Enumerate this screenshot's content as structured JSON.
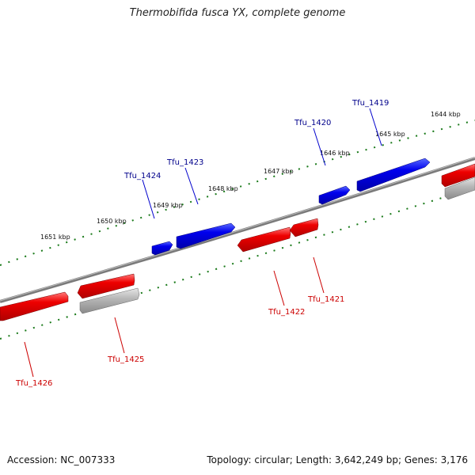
{
  "title": "Thermobifida fusca YX, complete genome",
  "accession": "Accession: NC_007333",
  "summary": "Topology: circular; Length: 3,642,249 bp; Genes: 3,176",
  "colors": {
    "forward_strand": "#0000dd",
    "reverse_strand": "#ee0000",
    "other_feature": "#b3b3b3",
    "backbone": "#777777",
    "ruler_dots": "#1a7a1a",
    "forward_label": "#00008b",
    "reverse_label": "#cc0000"
  },
  "scale_labels": [
    "1651 kbp",
    "1650 kbp",
    "1649 kbp",
    "1648 kbp",
    "1647 kbp",
    "1646 kbp",
    "1645 kbp",
    "1644 kbp"
  ],
  "genes_forward": [
    "Tfu_1424",
    "Tfu_1423",
    "Tfu_1420",
    "Tfu_1419"
  ],
  "genes_reverse": [
    "Tfu_1426",
    "Tfu_1425",
    "Tfu_1422",
    "Tfu_1421"
  ]
}
